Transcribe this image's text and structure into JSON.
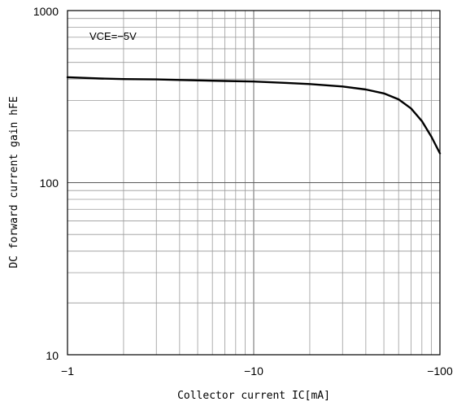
{
  "chart_data": {
    "type": "line",
    "title": "",
    "xlabel": "Collector current IC[mA]",
    "ylabel": "DC forward current gain hFE",
    "x_scale": "log",
    "y_scale": "log",
    "xlim": [
      -1,
      -100
    ],
    "ylim": [
      10,
      1000
    ],
    "x_ticks": [
      {
        "value": -1,
        "label": "−1"
      },
      {
        "value": -10,
        "label": "−10"
      },
      {
        "value": -100,
        "label": "−100"
      }
    ],
    "y_ticks": [
      {
        "value": 10,
        "label": "10"
      },
      {
        "value": 100,
        "label": "100"
      },
      {
        "value": 1000,
        "label": "1000"
      }
    ],
    "grid": true,
    "annotations": [
      {
        "text": "VCE=−5V"
      }
    ],
    "series": [
      {
        "x": [
          -1,
          -1.5,
          -2,
          -3,
          -4,
          -5,
          -7,
          -10,
          -15,
          -20,
          -30,
          -40,
          -50,
          -60,
          -70,
          -80,
          -90,
          -100
        ],
        "y": [
          410,
          403,
          400,
          398,
          395,
          393,
          390,
          387,
          380,
          374,
          362,
          348,
          330,
          305,
          270,
          228,
          185,
          148
        ]
      }
    ]
  }
}
